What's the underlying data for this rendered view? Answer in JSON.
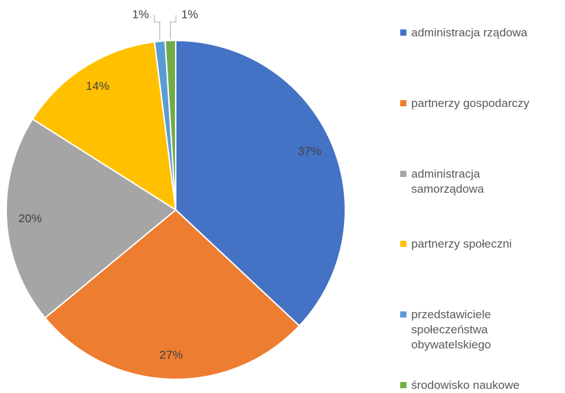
{
  "chart_data": {
    "type": "pie",
    "categories": [
      "administracja rządowa",
      "partnerzy gospodarczy",
      "administracja samorządowa",
      "partnerzy społeczni",
      "przedstawiciele społeczeństwa obywatelskiego",
      "środowisko naukowe"
    ],
    "values": [
      37,
      27,
      20,
      14,
      1,
      1
    ],
    "value_labels": [
      "37%",
      "27%",
      "20%",
      "14%",
      "1%",
      "1%"
    ],
    "colors": [
      "#4472c4",
      "#ed7d31",
      "#a5a5a5",
      "#ffc000",
      "#5b9bd5",
      "#70ad47"
    ],
    "legend": "right"
  }
}
